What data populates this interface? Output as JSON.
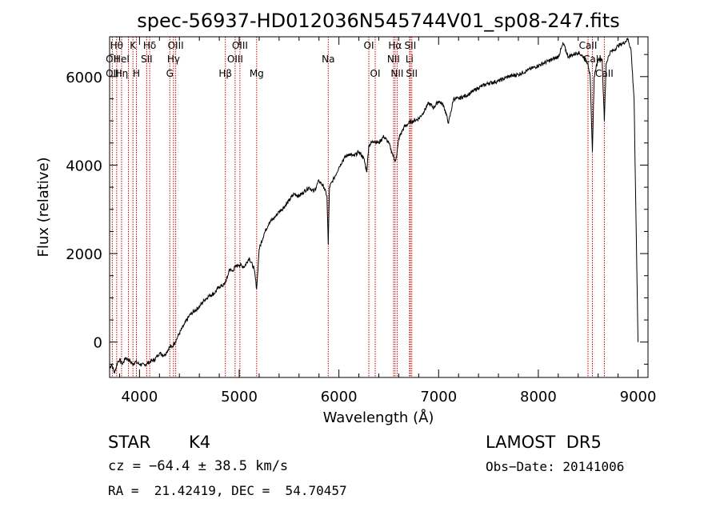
{
  "chart_data": {
    "type": "line",
    "title": "spec-56937-HD012036N545744V01_sp08-247.fits",
    "xlabel": "Wavelength (Å)",
    "ylabel": "Flux (relative)",
    "xlim": [
      3700,
      9100
    ],
    "ylim": [
      -800,
      6900
    ],
    "x_ticks": [
      4000,
      5000,
      6000,
      7000,
      8000,
      9000
    ],
    "y_ticks": [
      0,
      2000,
      4000,
      6000
    ],
    "grid": false,
    "line_color": "#000000",
    "marker_color": "#cc0000",
    "series": [
      {
        "x": [
          3700,
          3720,
          3750,
          3780,
          3800,
          3830,
          3860,
          3900,
          3930,
          3960,
          4000,
          4050,
          4100,
          4150,
          4200,
          4250,
          4300,
          4330,
          4350,
          4380,
          4400,
          4450,
          4500,
          4550,
          4600,
          4650,
          4700,
          4750,
          4800,
          4850,
          4880,
          4900,
          4930,
          4960,
          5000,
          5050,
          5100,
          5150,
          5175,
          5200,
          5250,
          5300,
          5350,
          5400,
          5450,
          5500,
          5550,
          5600,
          5650,
          5700,
          5750,
          5800,
          5850,
          5880,
          5893,
          5905,
          5950,
          6000,
          6050,
          6100,
          6150,
          6200,
          6250,
          6280,
          6300,
          6350,
          6400,
          6450,
          6500,
          6530,
          6563,
          6580,
          6600,
          6650,
          6700,
          6750,
          6800,
          6850,
          6900,
          6950,
          7000,
          7050,
          7100,
          7150,
          7200,
          7300,
          7400,
          7500,
          7600,
          7700,
          7800,
          7900,
          8000,
          8100,
          8200,
          8250,
          8300,
          8350,
          8400,
          8450,
          8498,
          8520,
          8542,
          8560,
          8600,
          8640,
          8662,
          8680,
          8720,
          8760,
          8800,
          8850,
          8900,
          8930,
          8960,
          8980,
          9000
        ],
        "y": [
          -600,
          -500,
          -700,
          -450,
          -400,
          -500,
          -350,
          -420,
          -500,
          -450,
          -500,
          -520,
          -450,
          -400,
          -250,
          -300,
          -120,
          -100,
          -20,
          100,
          200,
          400,
          600,
          700,
          800,
          950,
          1050,
          1100,
          1250,
          1300,
          1450,
          1650,
          1600,
          1700,
          1750,
          1700,
          1900,
          1650,
          1200,
          2100,
          2450,
          2700,
          2800,
          2950,
          3050,
          3200,
          3350,
          3300,
          3400,
          3500,
          3400,
          3650,
          3500,
          3300,
          2200,
          3500,
          3700,
          3950,
          4150,
          4250,
          4200,
          4300,
          4150,
          3850,
          4450,
          4550,
          4500,
          4650,
          4500,
          4300,
          4100,
          4200,
          4600,
          4850,
          4950,
          5000,
          5050,
          5200,
          5400,
          5300,
          5450,
          5350,
          4950,
          5500,
          5500,
          5600,
          5750,
          5850,
          5900,
          6000,
          6050,
          6150,
          6250,
          6350,
          6450,
          6750,
          6450,
          6500,
          6550,
          6450,
          6300,
          6000,
          4300,
          6000,
          6400,
          6400,
          5000,
          6300,
          6550,
          6600,
          6700,
          6750,
          6850,
          6600,
          5500,
          2800,
          0
        ]
      }
    ],
    "annotations": [
      {
        "x": 3727,
        "labels": [
          "",
          "OII",
          "OII"
        ]
      },
      {
        "x": 3771,
        "labels": [
          "Hθ",
          "",
          ""
        ]
      },
      {
        "x": 3820,
        "labels": [
          "",
          "HeI",
          "Hη"
        ]
      },
      {
        "x": 3889,
        "labels": [
          "",
          "",
          ""
        ]
      },
      {
        "x": 3934,
        "labels": [
          "K",
          "",
          ""
        ]
      },
      {
        "x": 3969,
        "labels": [
          "",
          "",
          "H"
        ]
      },
      {
        "x": 4072,
        "labels": [
          "",
          "SII",
          ""
        ]
      },
      {
        "x": 4102,
        "labels": [
          "Hδ",
          "",
          ""
        ]
      },
      {
        "x": 4304,
        "labels": [
          "",
          "",
          "G"
        ]
      },
      {
        "x": 4341,
        "labels": [
          "",
          "Hγ",
          ""
        ]
      },
      {
        "x": 4363,
        "labels": [
          "OIII",
          "",
          ""
        ]
      },
      {
        "x": 4861,
        "labels": [
          "",
          "",
          "Hβ"
        ]
      },
      {
        "x": 4959,
        "labels": [
          "",
          "OIII",
          ""
        ]
      },
      {
        "x": 5007,
        "labels": [
          "OIII",
          "",
          ""
        ]
      },
      {
        "x": 5175,
        "labels": [
          "",
          "",
          "Mg"
        ]
      },
      {
        "x": 5893,
        "labels": [
          "",
          "Na",
          ""
        ]
      },
      {
        "x": 6300,
        "labels": [
          "OI",
          "",
          ""
        ]
      },
      {
        "x": 6364,
        "labels": [
          "",
          "",
          "OI"
        ]
      },
      {
        "x": 6548,
        "labels": [
          "",
          "NII",
          ""
        ]
      },
      {
        "x": 6563,
        "labels": [
          "Hα",
          "",
          ""
        ]
      },
      {
        "x": 6584,
        "labels": [
          "",
          "",
          "NII"
        ]
      },
      {
        "x": 6708,
        "labels": [
          "",
          "Li",
          ""
        ]
      },
      {
        "x": 6716,
        "labels": [
          "SII",
          "",
          ""
        ]
      },
      {
        "x": 6731,
        "labels": [
          "",
          "",
          "SII"
        ]
      },
      {
        "x": 8498,
        "labels": [
          "CaII",
          "",
          ""
        ]
      },
      {
        "x": 8542,
        "labels": [
          "",
          "CaII",
          ""
        ]
      },
      {
        "x": 8662,
        "labels": [
          "",
          "",
          "CaII"
        ]
      }
    ]
  },
  "info": {
    "class_label": "STAR",
    "subclass": "K4",
    "survey": "LAMOST  DR5",
    "cz_text": "cz = −64.4 ± 38.5 km/s",
    "obs_date": "Obs−Date: 20141006",
    "coords": "RA =  21.42419, DEC =  54.70457"
  }
}
